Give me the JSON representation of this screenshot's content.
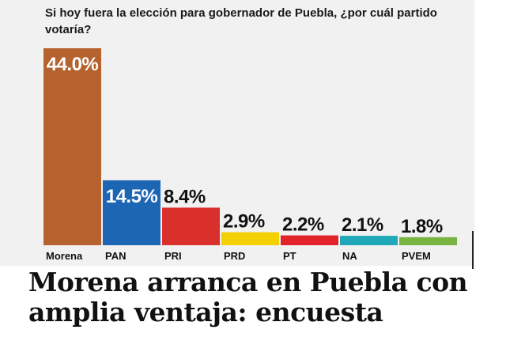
{
  "chart_data": {
    "type": "bar",
    "title": "Si hoy fuera la elección para gobernador de Puebla, ¿por cuál partido votaría?",
    "categories": [
      "Morena",
      "PAN",
      "PRI",
      "PRD",
      "PT",
      "NA",
      "PVEM"
    ],
    "values": [
      44.0,
      14.5,
      8.4,
      2.9,
      2.2,
      2.1,
      1.8
    ],
    "value_labels": [
      "44.0%",
      "14.5%",
      "8.4%",
      "2.9%",
      "2.2%",
      "2.1%",
      "1.8%"
    ],
    "colors": [
      "#b5622e",
      "#1d66b4",
      "#d9302c",
      "#f4d000",
      "#e3232a",
      "#20a8b8",
      "#79b442"
    ],
    "ylim": [
      0,
      44.0
    ],
    "grid": false,
    "legend": "none"
  },
  "headline": "Morena arranca en Puebla con amplia ventaja: encuesta"
}
